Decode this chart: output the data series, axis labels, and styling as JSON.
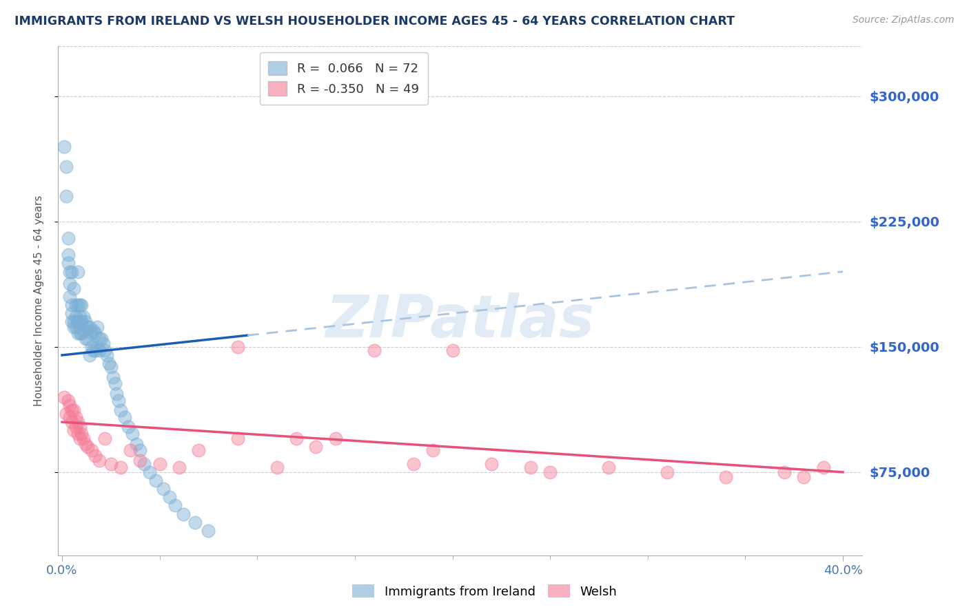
{
  "title": "IMMIGRANTS FROM IRELAND VS WELSH HOUSEHOLDER INCOME AGES 45 - 64 YEARS CORRELATION CHART",
  "source": "Source: ZipAtlas.com",
  "ylabel": "Householder Income Ages 45 - 64 years",
  "ytick_labels": [
    "$75,000",
    "$150,000",
    "$225,000",
    "$300,000"
  ],
  "ytick_values": [
    75000,
    150000,
    225000,
    300000
  ],
  "xlim": [
    -0.002,
    0.41
  ],
  "ylim": [
    25000,
    330000
  ],
  "ireland_color": "#7BAFD4",
  "welsh_color": "#F47C96",
  "ireland_R": 0.066,
  "ireland_N": 72,
  "welsh_R": -0.35,
  "welsh_N": 49,
  "legend_label_ireland": "Immigrants from Ireland",
  "legend_label_welsh": "Welsh",
  "watermark": "ZIPatlas",
  "background_color": "#ffffff",
  "grid_color": "#cccccc",
  "title_color": "#1a3a6b",
  "ytick_color": "#3366CC",
  "regression_ireland_solid": "#1a5fb4",
  "regression_ireland_dash": "#a8c4e0",
  "regression_welsh": "#e8517a",
  "ireland_x": [
    0.001,
    0.002,
    0.002,
    0.003,
    0.003,
    0.003,
    0.004,
    0.004,
    0.004,
    0.005,
    0.005,
    0.005,
    0.005,
    0.006,
    0.006,
    0.006,
    0.007,
    0.007,
    0.007,
    0.008,
    0.008,
    0.008,
    0.008,
    0.009,
    0.009,
    0.009,
    0.01,
    0.01,
    0.01,
    0.011,
    0.011,
    0.012,
    0.012,
    0.013,
    0.013,
    0.014,
    0.014,
    0.015,
    0.015,
    0.016,
    0.016,
    0.017,
    0.017,
    0.018,
    0.018,
    0.019,
    0.019,
    0.02,
    0.021,
    0.022,
    0.023,
    0.024,
    0.025,
    0.026,
    0.027,
    0.028,
    0.029,
    0.03,
    0.032,
    0.034,
    0.036,
    0.038,
    0.04,
    0.042,
    0.045,
    0.048,
    0.052,
    0.055,
    0.058,
    0.062,
    0.068,
    0.075
  ],
  "ireland_y": [
    270000,
    258000,
    240000,
    215000,
    205000,
    200000,
    195000,
    188000,
    180000,
    175000,
    170000,
    165000,
    195000,
    165000,
    162000,
    185000,
    175000,
    168000,
    162000,
    195000,
    175000,
    165000,
    158000,
    175000,
    168000,
    158000,
    175000,
    165000,
    158000,
    168000,
    160000,
    165000,
    155000,
    162000,
    155000,
    162000,
    145000,
    158000,
    150000,
    160000,
    148000,
    158000,
    148000,
    162000,
    150000,
    155000,
    148000,
    155000,
    152000,
    148000,
    145000,
    140000,
    138000,
    132000,
    128000,
    122000,
    118000,
    112000,
    108000,
    102000,
    98000,
    92000,
    88000,
    80000,
    75000,
    70000,
    65000,
    60000,
    55000,
    50000,
    45000,
    40000
  ],
  "welsh_x": [
    0.001,
    0.002,
    0.003,
    0.004,
    0.004,
    0.005,
    0.005,
    0.006,
    0.006,
    0.007,
    0.007,
    0.008,
    0.008,
    0.009,
    0.009,
    0.01,
    0.011,
    0.012,
    0.013,
    0.015,
    0.017,
    0.019,
    0.022,
    0.025,
    0.03,
    0.035,
    0.04,
    0.05,
    0.06,
    0.07,
    0.09,
    0.11,
    0.13,
    0.16,
    0.19,
    0.22,
    0.25,
    0.28,
    0.31,
    0.34,
    0.37,
    0.38,
    0.39,
    0.14,
    0.18,
    0.09,
    0.12,
    0.2,
    0.24
  ],
  "welsh_y": [
    120000,
    110000,
    118000,
    108000,
    115000,
    112000,
    105000,
    112000,
    100000,
    108000,
    102000,
    105000,
    98000,
    102000,
    95000,
    98000,
    95000,
    92000,
    90000,
    88000,
    85000,
    82000,
    95000,
    80000,
    78000,
    88000,
    82000,
    80000,
    78000,
    88000,
    95000,
    78000,
    90000,
    148000,
    88000,
    80000,
    75000,
    78000,
    75000,
    72000,
    75000,
    72000,
    78000,
    95000,
    80000,
    150000,
    95000,
    148000,
    78000
  ]
}
